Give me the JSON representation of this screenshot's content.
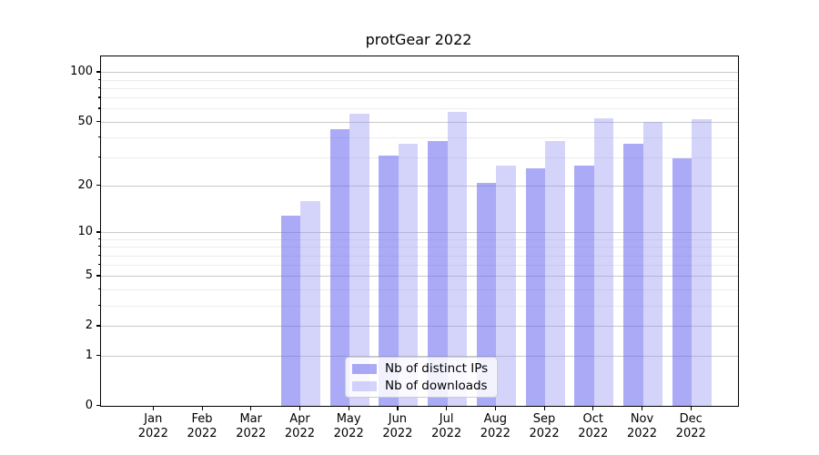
{
  "chart_data": {
    "type": "bar",
    "title": "protGear 2022",
    "months": [
      "Jan",
      "Feb",
      "Mar",
      "Apr",
      "May",
      "Jun",
      "Jul",
      "Aug",
      "Sep",
      "Oct",
      "Nov",
      "Dec"
    ],
    "year": "2022",
    "series": [
      {
        "name": "Nb of distinct IPs",
        "color": "rgba(106,106,240,0.57)",
        "values": [
          0,
          0,
          0,
          13,
          45,
          31,
          38,
          21,
          26,
          27,
          37,
          30
        ]
      },
      {
        "name": "Nb of downloads",
        "color": "rgba(152,152,242,0.42)",
        "values": [
          0,
          0,
          0,
          16,
          56,
          37,
          58,
          27,
          38,
          53,
          50,
          52
        ]
      }
    ],
    "yscale": "log1p",
    "y_major_ticks": [
      0,
      1,
      2,
      5,
      10,
      20,
      50,
      100
    ],
    "y_minor_ticks": [
      3,
      4,
      6,
      7,
      8,
      9,
      30,
      40,
      60,
      70,
      80,
      90
    ],
    "ylim": [
      0,
      126
    ],
    "grid": true,
    "legend_position": "lower center"
  },
  "colors": {
    "major_grid": "#c9c9c9",
    "minor_grid": "#ececec",
    "axis": "#000000",
    "background": "#ffffff"
  }
}
